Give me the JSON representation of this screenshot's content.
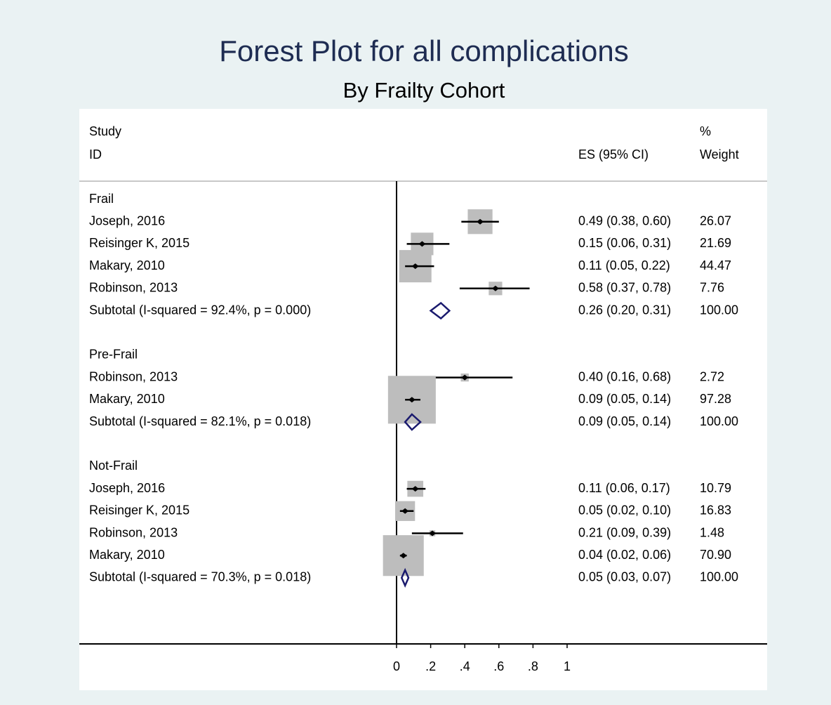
{
  "chart_data": {
    "type": "forest",
    "title": "Forest Plot for all complications",
    "subtitle": "By Frailty Cohort",
    "headers": {
      "study": "Study",
      "id": "ID",
      "es": "ES (95% CI)",
      "weight_pct": "%",
      "weight": "Weight"
    },
    "box_color": "#bdbdbd",
    "diamond_color": "#1a1a6e",
    "ci_color": "#000000",
    "xlim": [
      0,
      1
    ],
    "xticks": [
      0,
      {
        "value": 0.2,
        "label": ".2"
      },
      {
        "value": 0.4,
        "label": ".4"
      },
      {
        "value": 0.6,
        "label": ".6"
      },
      {
        "value": 0.8,
        "label": ".8"
      },
      1
    ],
    "groups": [
      {
        "name": "Frail",
        "studies": [
          "Joseph, 2016",
          "Reisinger K, 2015",
          "Makary, 2010",
          "Robinson, 2013"
        ],
        "values": [
          0.49,
          0.15,
          0.11,
          0.58
        ],
        "lower": [
          0.38,
          0.06,
          0.05,
          0.37
        ],
        "upper": [
          0.6,
          0.31,
          0.22,
          0.78
        ],
        "weights": [
          26.07,
          21.69,
          44.47,
          7.76
        ],
        "value_labels": [
          "0.49 (0.38, 0.60)",
          "0.15 (0.06, 0.31)",
          "0.11 (0.05, 0.22)",
          "0.58 (0.37, 0.78)"
        ],
        "weight_labels": [
          "26.07",
          "21.69",
          "44.47",
          "7.76"
        ],
        "subtotal": {
          "label": "Subtotal  (I-squared = 92.4%, p = 0.000)",
          "value": 0.26,
          "lower": 0.2,
          "upper": 0.31,
          "weight": 100,
          "value_label": "0.26 (0.20, 0.31)",
          "weight_label": "100.00"
        }
      },
      {
        "name": "Pre-Frail",
        "studies": [
          "Robinson, 2013",
          "Makary, 2010"
        ],
        "values": [
          0.4,
          0.09
        ],
        "lower": [
          0.16,
          0.05
        ],
        "upper": [
          0.68,
          0.14
        ],
        "weights": [
          2.72,
          97.28
        ],
        "value_labels": [
          "0.40 (0.16, 0.68)",
          "0.09 (0.05, 0.14)"
        ],
        "weight_labels": [
          "2.72",
          "97.28"
        ],
        "subtotal": {
          "label": "Subtotal  (I-squared = 82.1%, p = 0.018)",
          "value": 0.09,
          "lower": 0.05,
          "upper": 0.14,
          "weight": 100,
          "value_label": "0.09 (0.05, 0.14)",
          "weight_label": "100.00"
        }
      },
      {
        "name": "Not-Frail",
        "studies": [
          "Joseph, 2016",
          "Reisinger K, 2015",
          "Robinson, 2013",
          "Makary, 2010"
        ],
        "values": [
          0.11,
          0.05,
          0.21,
          0.04
        ],
        "lower": [
          0.06,
          0.02,
          0.09,
          0.02
        ],
        "upper": [
          0.17,
          0.1,
          0.39,
          0.06
        ],
        "weights": [
          10.79,
          16.83,
          1.48,
          70.9
        ],
        "value_labels": [
          "0.11 (0.06, 0.17)",
          "0.05 (0.02, 0.10)",
          "0.21 (0.09, 0.39)",
          "0.04 (0.02, 0.06)"
        ],
        "weight_labels": [
          "10.79",
          "16.83",
          "1.48",
          "70.90"
        ],
        "subtotal": {
          "label": "Subtotal  (I-squared = 70.3%, p = 0.018)",
          "value": 0.05,
          "lower": 0.03,
          "upper": 0.07,
          "weight": 100,
          "value_label": "0.05 (0.03, 0.07)",
          "weight_label": "100.00"
        }
      }
    ]
  }
}
